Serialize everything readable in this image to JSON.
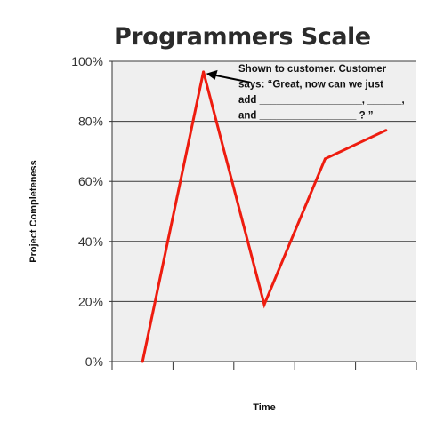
{
  "chart_data": {
    "type": "line",
    "title": "Programmers Scale",
    "xlabel": "Time",
    "ylabel": "Project Completeness",
    "x": [
      0.5,
      1.5,
      2.5,
      3.5,
      4.5
    ],
    "y_ticks": [
      "0%",
      "20%",
      "40%",
      "60%",
      "80%",
      "100%"
    ],
    "ylim": [
      0,
      100
    ],
    "xlim": [
      0,
      5
    ],
    "grid": true,
    "series": [
      {
        "color": "#ee1c0f",
        "points": [
          {
            "x": 0.5,
            "y": 0
          },
          {
            "x": 1.5,
            "y": 96.5
          },
          {
            "x": 2.5,
            "y": 19
          },
          {
            "x": 3.5,
            "y": 67.5
          },
          {
            "x": 4.5,
            "y": 77
          }
        ]
      }
    ],
    "annotation": {
      "target": {
        "x": 1.5,
        "y": 96.5
      },
      "lines": [
        "Shown to customer. Customer",
        "says: “Great, now can we just",
        "add __________________,  ______,",
        "and _________________ ? ”"
      ]
    }
  }
}
